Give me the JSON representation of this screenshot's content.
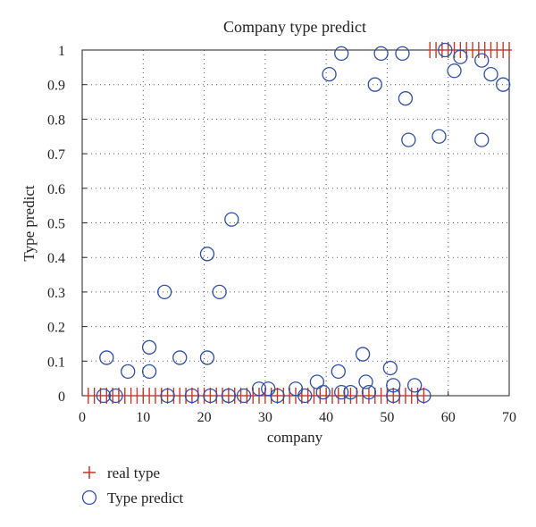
{
  "chart_data": {
    "type": "scatter",
    "title": "Company type predict",
    "xlabel": "company",
    "ylabel": "Type predict",
    "xlim": [
      0,
      70
    ],
    "ylim": [
      0,
      1
    ],
    "x_ticks": [
      0,
      10,
      20,
      30,
      40,
      50,
      60,
      70
    ],
    "y_ticks": [
      {
        "value": 0,
        "label": "0"
      },
      {
        "value": 0.1,
        "label": "0.1"
      },
      {
        "value": 0.2,
        "label": "0.2"
      },
      {
        "value": 0.3,
        "label": "0.3"
      },
      {
        "value": 0.4,
        "label": "0.4"
      },
      {
        "value": 0.5,
        "label": "0.5"
      },
      {
        "value": 0.6,
        "label": "0.6"
      },
      {
        "value": 0.7,
        "label": "0.7"
      },
      {
        "value": 0.8,
        "label": "0.8"
      },
      {
        "value": 0.9,
        "label": "0.9"
      },
      {
        "value": 1,
        "label": "1"
      }
    ],
    "grid": true,
    "legend_position": "bottom-left",
    "series": [
      {
        "name": "real type",
        "marker": "plus",
        "color": "#c0392b",
        "x": [
          1,
          2,
          3,
          4,
          5,
          6,
          7,
          8,
          9,
          10,
          11,
          12,
          13,
          14,
          15,
          16,
          17,
          18,
          19,
          20,
          21,
          22,
          23,
          24,
          25,
          26,
          27,
          28,
          29,
          30,
          31,
          32,
          33,
          34,
          35,
          36,
          37,
          38,
          39,
          40,
          41,
          42,
          43,
          44,
          45,
          46,
          47,
          48,
          49,
          50,
          51,
          52,
          53,
          54,
          55,
          56,
          57,
          58,
          59,
          60,
          61,
          62,
          63,
          64,
          65,
          66,
          67,
          68,
          69,
          70
        ],
        "y": [
          0,
          0,
          0,
          0,
          0,
          0,
          0,
          0,
          0,
          0,
          0,
          0,
          0,
          0,
          0,
          0,
          0,
          0,
          0,
          0,
          0,
          0,
          0,
          0,
          0,
          0,
          0,
          0,
          0,
          0,
          0,
          0,
          0,
          0,
          0,
          0,
          0,
          0,
          0,
          0,
          0,
          0,
          0,
          0,
          0,
          0,
          0,
          0,
          0,
          0,
          0,
          0,
          0,
          0,
          0,
          0,
          1,
          1,
          1,
          1,
          1,
          1,
          1,
          1,
          1,
          1,
          1,
          1,
          1,
          1
        ]
      },
      {
        "name": "Type predict",
        "marker": "circle",
        "color": "#2e4fa3",
        "x": [
          3.5,
          4,
          5.5,
          7.5,
          11,
          11,
          13.5,
          14,
          16,
          18,
          20.5,
          20.5,
          21,
          22.5,
          24,
          24.5,
          26.5,
          29,
          30.5,
          32,
          35,
          36.5,
          38.5,
          39.5,
          40.5,
          42,
          42.5,
          42.5,
          44,
          46,
          46.5,
          47,
          48,
          49,
          50.5,
          51,
          51,
          52.5,
          53,
          53.5,
          54.5,
          56,
          58.5,
          59.5,
          61,
          62,
          65.5,
          65.5,
          67,
          69
        ],
        "y": [
          0,
          0.11,
          0,
          0.07,
          0.14,
          0.07,
          0.3,
          0,
          0.11,
          0,
          0.41,
          0.11,
          0,
          0.3,
          0,
          0.51,
          0,
          0.02,
          0.02,
          0,
          0.02,
          0,
          0.04,
          0.01,
          0.93,
          0.07,
          0.01,
          0.99,
          0.01,
          0.12,
          0.04,
          0.01,
          0.9,
          0.99,
          0.08,
          0.03,
          0,
          0.99,
          0.86,
          0.74,
          0.03,
          0,
          0.75,
          1,
          0.94,
          0.98,
          0.97,
          0.74,
          0.93,
          0.9
        ]
      }
    ]
  }
}
